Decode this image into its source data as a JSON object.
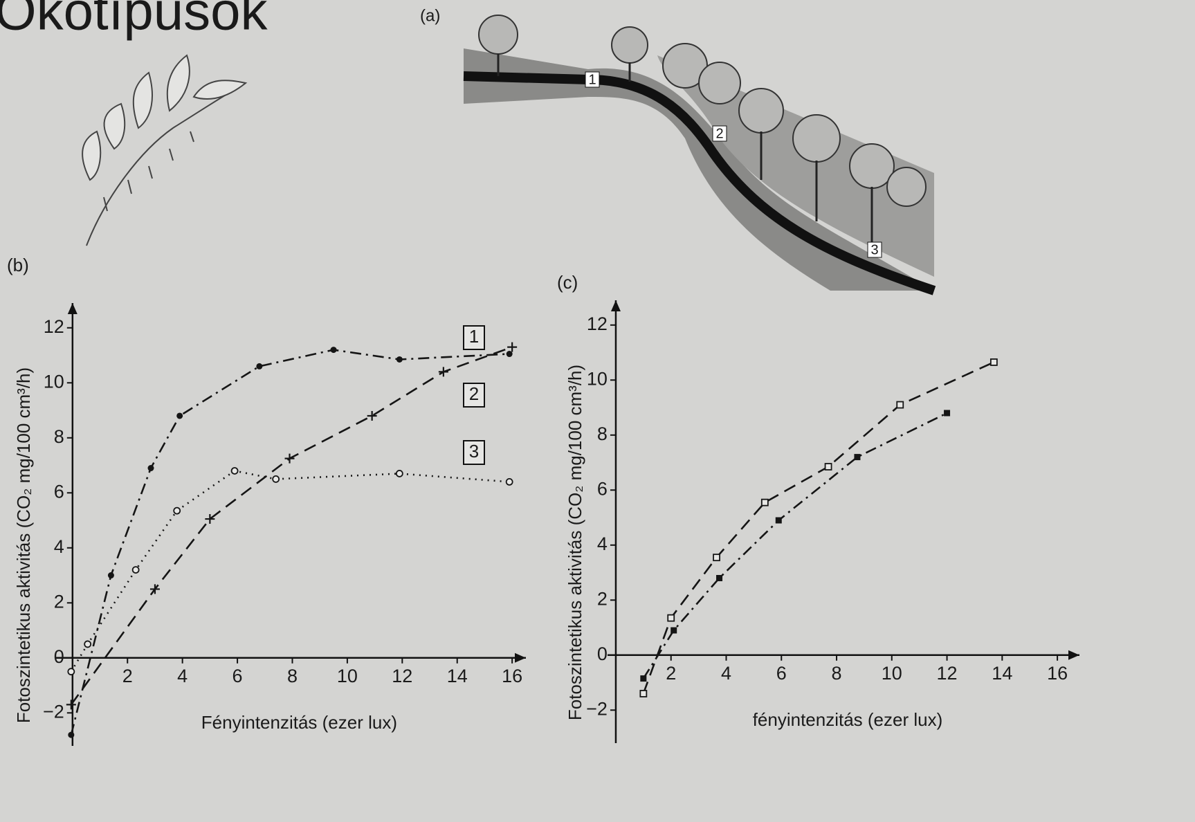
{
  "title": "Ökotípusok",
  "illustration": {
    "label": "(a)",
    "markers": [
      "1",
      "2",
      "3"
    ]
  },
  "chart_data": [
    {
      "type": "scatter",
      "panel": "(b)",
      "x_label": "Fényintenzitás (ezer lux)",
      "y_label": "Fotoszintetikus aktivitás (CO₂ mg/100 cm³/h)",
      "xlim": [
        -0.6,
        16.5
      ],
      "ylim": [
        -3.2,
        12.9
      ],
      "xticks": [
        2,
        4,
        6,
        8,
        10,
        12,
        14,
        16
      ],
      "yticks": [
        {
          "value": -2,
          "label": "−2"
        },
        0,
        2,
        4,
        6,
        8,
        10,
        12
      ],
      "series": [
        {
          "name": "1",
          "color": "#151515",
          "marker": "dot",
          "line_style": "dash-dot",
          "x": [
            -0.05,
            1.4,
            2.85,
            3.9,
            6.8,
            9.5,
            11.9,
            15.9
          ],
          "values": [
            -2.8,
            3.0,
            6.9,
            8.8,
            10.6,
            11.2,
            10.85,
            11.05
          ]
        },
        {
          "name": "2",
          "color": "#151515",
          "marker": "plus",
          "line_style": "dashed",
          "x": [
            -0.05,
            3.0,
            5.0,
            7.9,
            10.9,
            13.5,
            16.0
          ],
          "values": [
            -1.7,
            2.5,
            5.05,
            7.25,
            8.8,
            10.4,
            11.3
          ]
        },
        {
          "name": "3",
          "color": "#151515",
          "marker": "circle",
          "line_style": "dotted",
          "x": [
            -0.05,
            0.55,
            2.3,
            3.8,
            5.9,
            7.4,
            11.9,
            15.9
          ],
          "values": [
            -0.5,
            0.5,
            3.2,
            5.35,
            6.8,
            6.5,
            6.7,
            6.4
          ]
        }
      ]
    },
    {
      "type": "scatter",
      "panel": "(c)",
      "x_label": "fényintenzitás (ezer lux)",
      "y_label": "Fotoszintetikus aktivitás (CO₂ mg/100 cm³/h)",
      "xlim": [
        -0.3,
        16.8
      ],
      "ylim": [
        -3.2,
        12.9
      ],
      "xticks": [
        2,
        4,
        6,
        8,
        10,
        12,
        14,
        16
      ],
      "yticks": [
        {
          "value": -2,
          "label": "−2"
        },
        0,
        2,
        4,
        6,
        8,
        10,
        12
      ],
      "series": [
        {
          "color": "#151515",
          "marker": "square-open",
          "line_style": "dashed",
          "x": [
            1.0,
            2.0,
            3.65,
            5.4,
            7.7,
            10.3,
            13.7
          ],
          "values": [
            -1.4,
            1.35,
            3.55,
            5.55,
            6.85,
            9.1,
            10.65
          ]
        },
        {
          "color": "#151515",
          "marker": "square-filled",
          "line_style": "dash-dot",
          "x": [
            1.0,
            2.1,
            3.75,
            5.9,
            8.75,
            12.0
          ],
          "values": [
            -0.85,
            0.9,
            2.8,
            4.9,
            7.2,
            8.8
          ]
        }
      ]
    }
  ]
}
